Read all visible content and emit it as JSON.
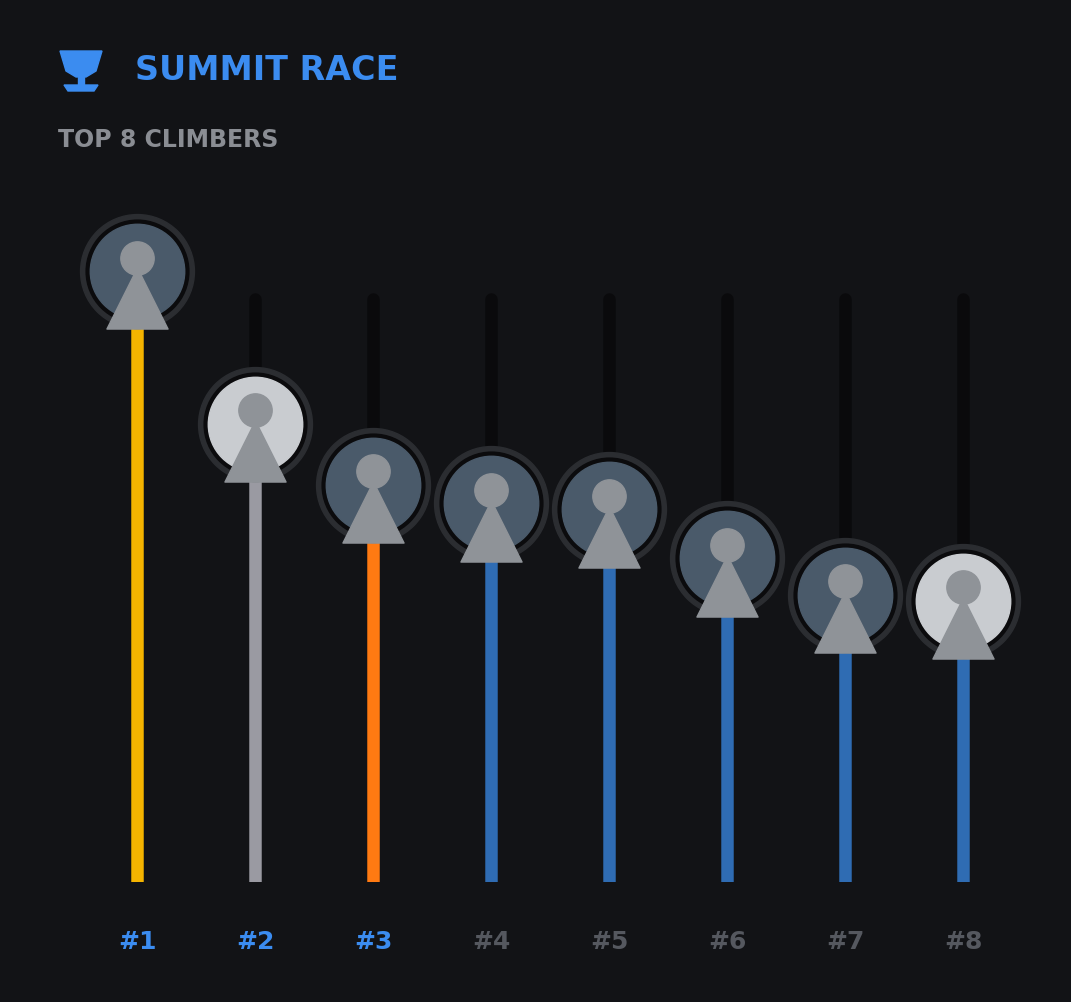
{
  "chart_data": {
    "type": "bar",
    "title": "SUMMIT RACE",
    "subtitle": "TOP 8 CLIMBERS",
    "categories": [
      "#1",
      "#2",
      "#3",
      "#4",
      "#5",
      "#6",
      "#7",
      "#8"
    ],
    "values": [
      100,
      75,
      65,
      62,
      61,
      53,
      47,
      46
    ],
    "colors": [
      "#f5b400",
      "#9a9aa2",
      "#ff7a12",
      "#2f6cb3",
      "#2f6cb3",
      "#2f6cb3",
      "#2f6cb3",
      "#2f6cb3"
    ],
    "ylim": [
      0,
      100
    ],
    "grid": false,
    "tick_labels": "x"
  }
}
